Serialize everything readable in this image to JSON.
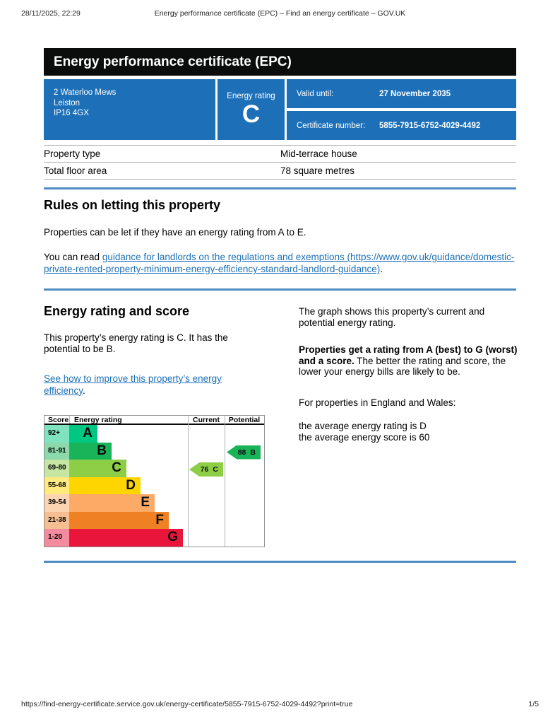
{
  "browser_header": {
    "timestamp": "28/11/2025, 22:29",
    "title": "Energy performance certificate (EPC) – Find an energy certificate – GOV.UK"
  },
  "browser_footer": {
    "url": "https://find-energy-certificate.service.gov.uk/energy-certificate/5855-7915-6752-4029-4492?print=true",
    "page": "1/5"
  },
  "banner": {
    "title": "Energy performance certificate (EPC)"
  },
  "summary": {
    "address_lines": [
      "2 Waterloo Mews",
      "Leiston",
      "IP16 4GX"
    ],
    "energy_rating_label": "Energy rating",
    "energy_rating_value": "C",
    "valid_until_label": "Valid until:",
    "valid_until_value": "27 November 2035",
    "certificate_number_label": "Certificate number:",
    "certificate_number_value": "5855-7915-6752-4029-4492",
    "box_color": "#1d70b8"
  },
  "property_table": {
    "rows": [
      {
        "label": "Property type",
        "value": "Mid-terrace house"
      },
      {
        "label": "Total floor area",
        "value": "78 square metres"
      }
    ]
  },
  "letting_rules": {
    "heading": "Rules on letting this property",
    "paragraph": "Properties can be let if they have an energy rating from A to E.",
    "link_prefix": "You can read ",
    "link_text": "guidance for landlords on the regulations and exemptions (https://www.gov.uk/guidance/domestic-private-rented-property-minimum-energy-efficiency-standard-landlord-guidance)",
    "link_suffix": "."
  },
  "rating_section": {
    "heading": "Energy rating and score",
    "intro": "This property’s energy rating is C. It has the potential to be B.",
    "improve_link_text": "See how to improve this property’s energy efficiency",
    "improve_link_suffix": ".",
    "right_para_1": "The graph shows this property’s current and potential energy rating.",
    "right_para_2_bold": "Properties get a rating from A (best) to G (worst) and a score.",
    "right_para_2_rest": " The better the rating and score, the lower your energy bills are likely to be.",
    "right_para_3": "For properties in England and Wales:",
    "average_rating_line": "the average energy rating is D",
    "average_score_line": "the average energy score is 60"
  },
  "chart_data": {
    "type": "bar",
    "title": "Energy rating and score graph",
    "column_headers": [
      "Score",
      "Energy rating",
      "Current",
      "Potential"
    ],
    "bands": [
      {
        "score_range": "92+",
        "letter": "A",
        "color": "#00c781",
        "score_bg": "#7fe3c0",
        "bar_pct": 24
      },
      {
        "score_range": "81-91",
        "letter": "B",
        "color": "#19b459",
        "score_bg": "#8cd9ac",
        "bar_pct": 36
      },
      {
        "score_range": "69-80",
        "letter": "C",
        "color": "#8dce46",
        "score_bg": "#c6e6a2",
        "bar_pct": 48
      },
      {
        "score_range": "55-68",
        "letter": "D",
        "color": "#ffd500",
        "score_bg": "#ffea80",
        "bar_pct": 60
      },
      {
        "score_range": "39-54",
        "letter": "E",
        "color": "#fcaa65",
        "score_bg": "#fdd4b2",
        "bar_pct": 72
      },
      {
        "score_range": "21-38",
        "letter": "F",
        "color": "#ef8023",
        "score_bg": "#f7bf91",
        "bar_pct": 84
      },
      {
        "score_range": "1-20",
        "letter": "G",
        "color": "#e9153b",
        "score_bg": "#f48a9d",
        "bar_pct": 96
      }
    ],
    "current": {
      "score": "76",
      "letter": "C",
      "color": "#8dce46",
      "band_index": 2
    },
    "potential": {
      "score": "88",
      "letter": "B",
      "color": "#19b459",
      "band_index": 1
    }
  }
}
